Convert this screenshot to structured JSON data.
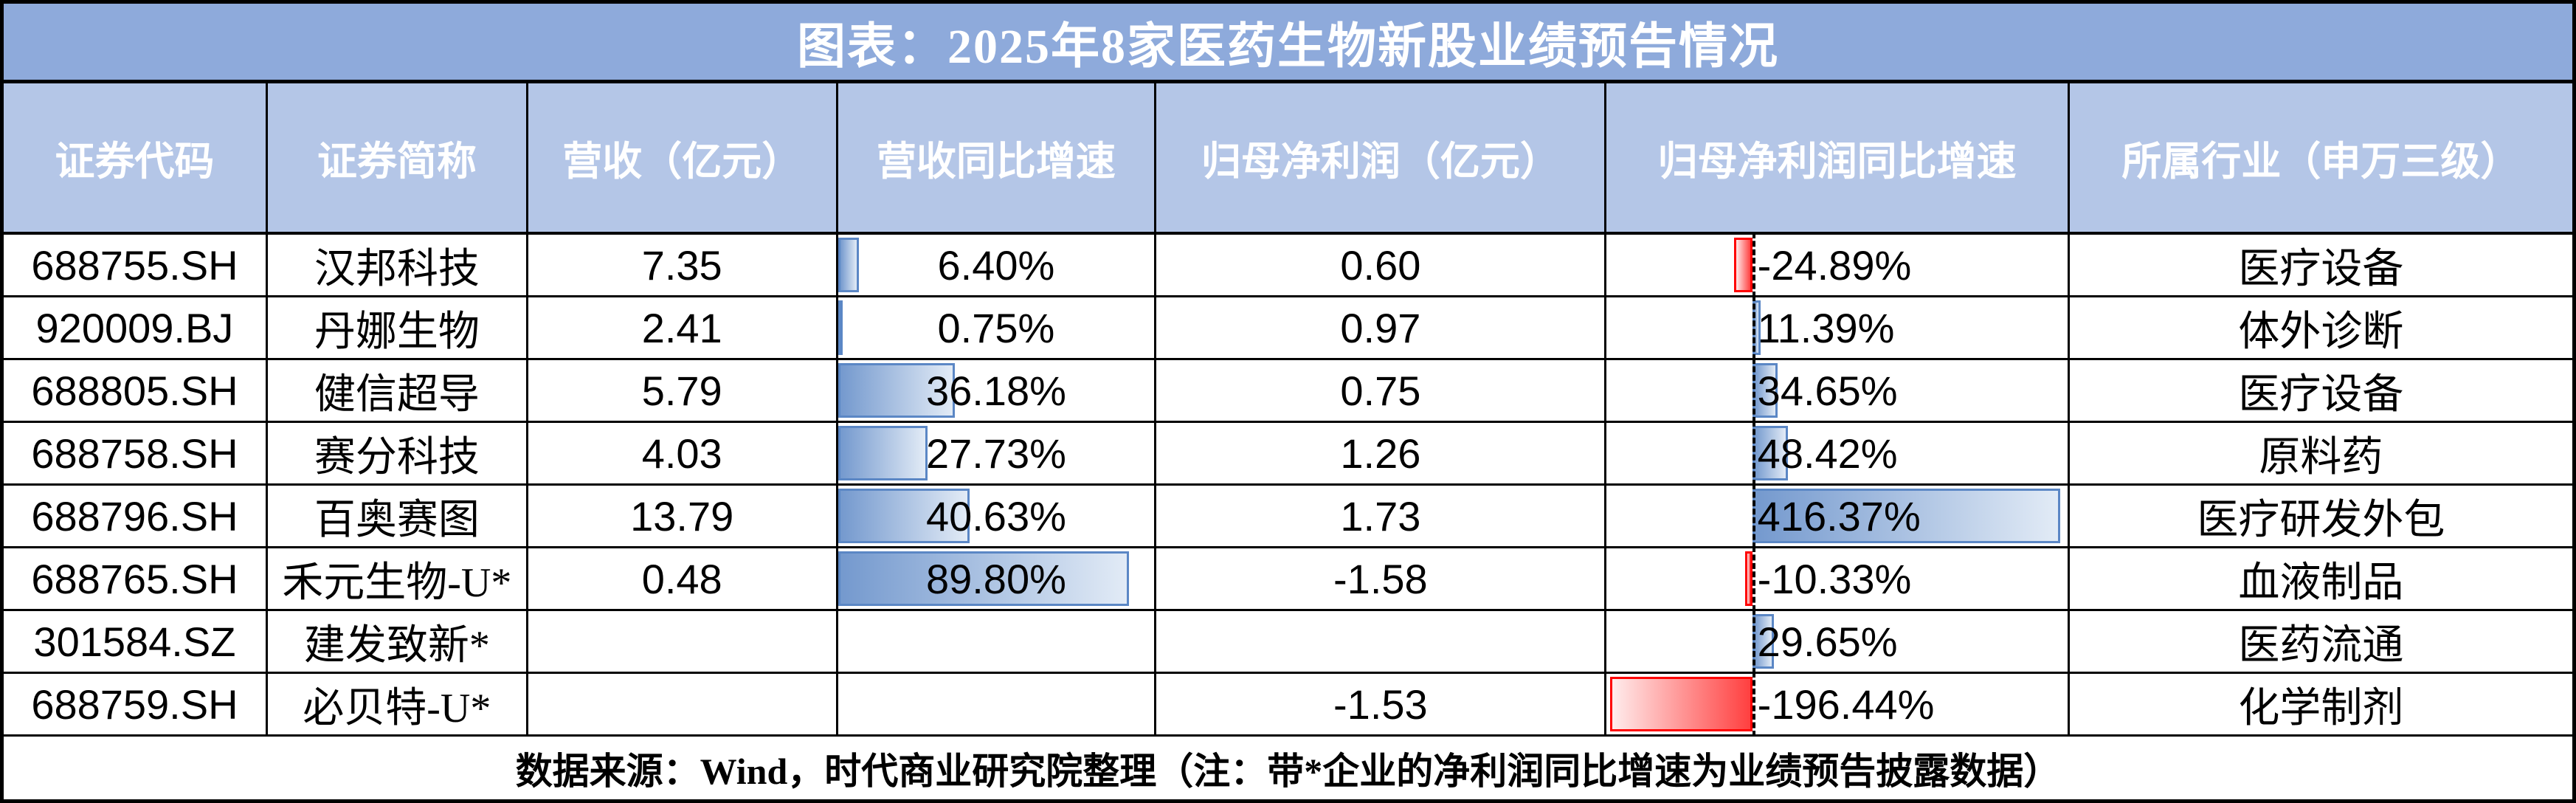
{
  "title": "图表：2025年8家医药生物新股业绩预告情况",
  "footer": "数据来源：Wind，时代商业研究院整理（注：带*企业的净利润同比增速为业绩预告披露数据）",
  "chart_data": {
    "type": "table",
    "title": "图表：2025年8家医药生物新股业绩预告情况",
    "columns": [
      "证券代码",
      "证券简称",
      "营收（亿元）",
      "营收同比增速",
      "归母净利润（亿元）",
      "归母净利润同比增速",
      "所属行业（申万三级）"
    ],
    "rows": [
      {
        "code": "688755.SH",
        "name": "汉邦科技",
        "revenue": "7.35",
        "revenue_yoy": "6.40%",
        "revenue_yoy_value": 6.4,
        "profit": "0.60",
        "profit_yoy": "-24.89%",
        "profit_yoy_value": -24.89,
        "industry": "医疗设备"
      },
      {
        "code": "920009.BJ",
        "name": "丹娜生物",
        "revenue": "2.41",
        "revenue_yoy": "0.75%",
        "revenue_yoy_value": 0.75,
        "profit": "0.97",
        "profit_yoy": "11.39%",
        "profit_yoy_value": 11.39,
        "industry": "体外诊断"
      },
      {
        "code": "688805.SH",
        "name": "健信超导",
        "revenue": "5.79",
        "revenue_yoy": "36.18%",
        "revenue_yoy_value": 36.18,
        "profit": "0.75",
        "profit_yoy": "34.65%",
        "profit_yoy_value": 34.65,
        "industry": "医疗设备"
      },
      {
        "code": "688758.SH",
        "name": "赛分科技",
        "revenue": "4.03",
        "revenue_yoy": "27.73%",
        "revenue_yoy_value": 27.73,
        "profit": "1.26",
        "profit_yoy": "48.42%",
        "profit_yoy_value": 48.42,
        "industry": "原料药"
      },
      {
        "code": "688796.SH",
        "name": "百奥赛图",
        "revenue": "13.79",
        "revenue_yoy": "40.63%",
        "revenue_yoy_value": 40.63,
        "profit": "1.73",
        "profit_yoy": "416.37%",
        "profit_yoy_value": 416.37,
        "industry": "医疗研发外包"
      },
      {
        "code": "688765.SH",
        "name": "禾元生物-U*",
        "revenue": "0.48",
        "revenue_yoy": "89.80%",
        "revenue_yoy_value": 89.8,
        "profit": "-1.58",
        "profit_yoy": "-10.33%",
        "profit_yoy_value": -10.33,
        "industry": "血液制品"
      },
      {
        "code": "301584.SZ",
        "name": "建发致新*",
        "revenue": "",
        "revenue_yoy": "",
        "revenue_yoy_value": null,
        "profit": "",
        "profit_yoy": "29.65%",
        "profit_yoy_value": 29.65,
        "industry": "医药流通"
      },
      {
        "code": "688759.SH",
        "name": "必贝特-U*",
        "revenue": "",
        "revenue_yoy": "",
        "revenue_yoy_value": null,
        "profit": "-1.53",
        "profit_yoy": "-196.44%",
        "profit_yoy_value": -196.44,
        "industry": "化学制剂"
      }
    ],
    "databar": {
      "revenue_yoy": {
        "style": "gradient-blue-databar",
        "max": 89.8,
        "full_length_pct": 92
      },
      "profit_yoy": {
        "style": "gradient-blue-red-databar",
        "axis_pct": 31.6,
        "pos_max": 416.37,
        "neg_max": 196.44,
        "axis_line": "black-dashed"
      }
    },
    "source_note": "数据来源：Wind，时代商业研究院整理（注：带*企业的净利润同比增速为业绩预告披露数据）"
  },
  "colors": {
    "title_bg": "#8EAADB",
    "header_bg": "#B4C6E7",
    "title_text": "#FFFFFF",
    "body_text": "#000000",
    "grid": "#000000",
    "bar_blue_border": "#5B87C5",
    "bar_blue_fill_start": "#7499CE",
    "bar_blue_fill_end": "#E2EBF6",
    "bar_red_border": "#FF0000",
    "bar_red_fill_start": "#FF4040",
    "bar_red_fill_end": "#FFECEC"
  }
}
